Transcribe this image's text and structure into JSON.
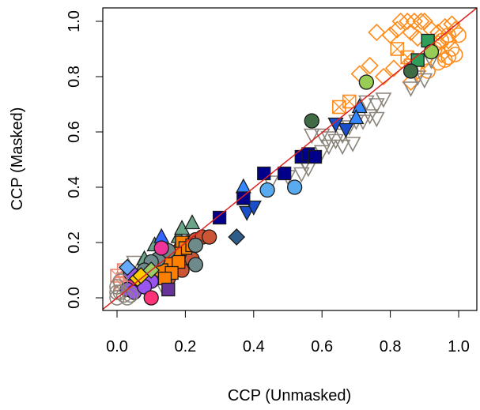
{
  "chart_data": {
    "type": "scatter",
    "title": "",
    "xlabel": "CCP (Unmasked)",
    "ylabel": "CCP (Masked)",
    "xlim": [
      0,
      1
    ],
    "ylim": [
      0,
      1
    ],
    "xticks": [
      "0.0",
      "0.2",
      "0.4",
      "0.6",
      "0.8",
      "1.0"
    ],
    "yticks": [
      "0.0",
      "0.2",
      "0.4",
      "0.6",
      "0.8",
      "1.0"
    ],
    "grid": false,
    "legend": "none",
    "reference_line": {
      "type": "identity",
      "color": "#dd2222"
    },
    "series": [
      {
        "shape": "diamond-open",
        "color": "#ff8c1a",
        "points": [
          [
            0.83,
            1.0
          ],
          [
            0.85,
            1.0
          ],
          [
            0.87,
            1.0
          ],
          [
            0.89,
            1.0
          ],
          [
            0.9,
            1.0
          ],
          [
            0.76,
            0.96
          ],
          [
            0.8,
            0.95
          ],
          [
            0.82,
            0.97
          ],
          [
            0.86,
            0.96
          ],
          [
            0.88,
            0.94
          ],
          [
            0.92,
            0.97
          ],
          [
            0.94,
            0.96
          ],
          [
            0.96,
            0.98
          ],
          [
            0.98,
            0.99
          ],
          [
            0.99,
            0.97
          ],
          [
            0.94,
            0.92
          ],
          [
            0.97,
            0.93
          ],
          [
            0.78,
            0.8
          ],
          [
            0.81,
            0.83
          ],
          [
            0.86,
            0.78
          ],
          [
            0.74,
            0.84
          ],
          [
            0.9,
            0.86
          ],
          [
            0.88,
            0.82
          ],
          [
            0.95,
            0.88
          ],
          [
            0.71,
            0.81
          ]
        ]
      },
      {
        "shape": "circle-open",
        "color": "#ff8c1a",
        "points": [
          [
            0.94,
            0.85
          ],
          [
            0.96,
            0.86
          ],
          [
            0.97,
            0.87
          ],
          [
            0.99,
            0.88
          ],
          [
            1.0,
            0.95
          ],
          [
            0.98,
            0.9
          ],
          [
            0.93,
            0.9
          ],
          [
            0.97,
            0.95
          ],
          [
            0.95,
            0.93
          ],
          [
            0.91,
            0.82
          ]
        ]
      },
      {
        "shape": "triangle-down-open",
        "color": "#8b847a",
        "points": [
          [
            0.57,
            0.59
          ],
          [
            0.6,
            0.59
          ],
          [
            0.62,
            0.58
          ],
          [
            0.64,
            0.57
          ],
          [
            0.66,
            0.59
          ],
          [
            0.68,
            0.62
          ],
          [
            0.7,
            0.64
          ],
          [
            0.72,
            0.64
          ],
          [
            0.74,
            0.66
          ],
          [
            0.76,
            0.65
          ],
          [
            0.73,
            0.71
          ],
          [
            0.76,
            0.7
          ],
          [
            0.78,
            0.72
          ],
          [
            0.62,
            0.55
          ],
          [
            0.66,
            0.55
          ],
          [
            0.69,
            0.56
          ],
          [
            0.55,
            0.49
          ],
          [
            0.56,
            0.47
          ],
          [
            0.6,
            0.53
          ],
          [
            0.5,
            0.44
          ],
          [
            0.54,
            0.45
          ],
          [
            0.45,
            0.42
          ],
          [
            0.88,
            0.8
          ],
          [
            0.9,
            0.79
          ],
          [
            0.92,
            0.86
          ],
          [
            0.86,
            0.76
          ],
          [
            0.04,
            0.06
          ],
          [
            0.06,
            0.03
          ],
          [
            0.08,
            0.04
          ],
          [
            0.02,
            0.07
          ],
          [
            0.05,
            0.13
          ],
          [
            0.09,
            0.1
          ],
          [
            0.11,
            0.07
          ],
          [
            0.13,
            0.05
          ]
        ]
      },
      {
        "shape": "square-x-open",
        "color": "#ff8c1a",
        "points": [
          [
            0.85,
            0.87
          ],
          [
            0.86,
            0.84
          ],
          [
            0.82,
            0.9
          ],
          [
            0.65,
            0.69
          ],
          [
            0.68,
            0.71
          ]
        ]
      },
      {
        "shape": "square-x-open",
        "color": "#ee8877",
        "points": [
          [
            0.0,
            0.08
          ],
          [
            0.01,
            0.05
          ],
          [
            0.02,
            0.1
          ],
          [
            0.04,
            0.08
          ],
          [
            0.06,
            0.05
          ]
        ]
      },
      {
        "shape": "square-filled",
        "color": "#2f9e5a",
        "points": [
          [
            0.91,
            0.93
          ],
          [
            0.88,
            0.86
          ]
        ]
      },
      {
        "shape": "circle-filled",
        "color": "#99cc55",
        "points": [
          [
            0.92,
            0.89
          ],
          [
            0.73,
            0.78
          ]
        ]
      },
      {
        "shape": "circle-filled",
        "color": "#3f6b45",
        "points": [
          [
            0.86,
            0.82
          ],
          [
            0.57,
            0.64
          ]
        ]
      },
      {
        "shape": "triangle-up-filled",
        "color": "#3388ff",
        "points": [
          [
            0.71,
            0.69
          ],
          [
            0.7,
            0.65
          ],
          [
            0.37,
            0.4
          ]
        ]
      },
      {
        "shape": "triangle-down-filled",
        "color": "#1a4fcc",
        "points": [
          [
            0.67,
            0.61
          ],
          [
            0.64,
            0.63
          ],
          [
            0.38,
            0.31
          ],
          [
            0.4,
            0.33
          ]
        ]
      },
      {
        "shape": "square-filled",
        "color": "#00008b",
        "points": [
          [
            0.54,
            0.51
          ],
          [
            0.56,
            0.52
          ],
          [
            0.58,
            0.51
          ],
          [
            0.49,
            0.45
          ],
          [
            0.43,
            0.45
          ],
          [
            0.37,
            0.36
          ],
          [
            0.3,
            0.29
          ]
        ]
      },
      {
        "shape": "circle-filled",
        "color": "#5aaaf0",
        "points": [
          [
            0.44,
            0.39
          ],
          [
            0.52,
            0.4
          ]
        ]
      },
      {
        "shape": "diamond-filled",
        "color": "#2f5d8a",
        "points": [
          [
            0.35,
            0.22
          ]
        ]
      },
      {
        "shape": "triangle-up-filled",
        "color": "#6aa58a",
        "points": [
          [
            0.11,
            0.19
          ],
          [
            0.14,
            0.16
          ],
          [
            0.18,
            0.22
          ],
          [
            0.19,
            0.25
          ],
          [
            0.22,
            0.27
          ],
          [
            0.16,
            0.13
          ],
          [
            0.2,
            0.18
          ],
          [
            0.08,
            0.14
          ],
          [
            0.1,
            0.1
          ],
          [
            0.14,
            0.09
          ]
        ]
      },
      {
        "shape": "triangle-up-filled",
        "color": "#3366ff",
        "points": [
          [
            0.13,
            0.22
          ]
        ]
      },
      {
        "shape": "circle-filled",
        "color": "#cc5533",
        "points": [
          [
            0.19,
            0.19
          ],
          [
            0.21,
            0.2
          ],
          [
            0.23,
            0.21
          ],
          [
            0.25,
            0.22
          ],
          [
            0.27,
            0.22
          ],
          [
            0.16,
            0.15
          ],
          [
            0.18,
            0.17
          ],
          [
            0.2,
            0.16
          ],
          [
            0.14,
            0.12
          ],
          [
            0.17,
            0.11
          ],
          [
            0.22,
            0.14
          ],
          [
            0.12,
            0.08
          ],
          [
            0.15,
            0.07
          ],
          [
            0.19,
            0.1
          ]
        ]
      },
      {
        "shape": "square-filled",
        "color": "#ff8000",
        "points": [
          [
            0.19,
            0.2
          ],
          [
            0.2,
            0.18
          ],
          [
            0.22,
            0.19
          ],
          [
            0.17,
            0.16
          ],
          [
            0.15,
            0.13
          ],
          [
            0.18,
            0.13
          ],
          [
            0.13,
            0.1
          ],
          [
            0.16,
            0.09
          ],
          [
            0.14,
            0.07
          ]
        ]
      },
      {
        "shape": "circle-filled",
        "color": "#6e8a8a",
        "points": [
          [
            0.23,
            0.19
          ],
          [
            0.12,
            0.14
          ],
          [
            0.1,
            0.13
          ],
          [
            0.23,
            0.12
          ],
          [
            0.15,
            0.17
          ],
          [
            0.08,
            0.1
          ]
        ]
      },
      {
        "shape": "circle-filled",
        "color": "#ee3399",
        "points": [
          [
            0.13,
            0.18
          ],
          [
            0.05,
            0.05
          ],
          [
            0.09,
            0.07
          ]
        ]
      },
      {
        "shape": "circle-filled",
        "color": "#9955ee",
        "points": [
          [
            0.03,
            0.03
          ],
          [
            0.05,
            0.02
          ],
          [
            0.07,
            0.06
          ],
          [
            0.1,
            0.06
          ],
          [
            0.08,
            0.04
          ],
          [
            0.04,
            0.09
          ]
        ]
      },
      {
        "shape": "square-filled",
        "color": "#663399",
        "points": [
          [
            0.15,
            0.03
          ]
        ]
      },
      {
        "shape": "circle-filled",
        "color": "#ff3377",
        "points": [
          [
            0.1,
            0.0
          ]
        ]
      },
      {
        "shape": "diamond-filled",
        "color": "#66aaff",
        "points": [
          [
            0.03,
            0.11
          ]
        ]
      },
      {
        "shape": "diamond-filled",
        "color": "#ffcc00",
        "points": [
          [
            0.06,
            0.07
          ],
          [
            0.07,
            0.08
          ]
        ]
      },
      {
        "shape": "diamond-filled",
        "color": "#99cc66",
        "points": [
          [
            0.1,
            0.1
          ]
        ]
      },
      {
        "shape": "circle-open",
        "color": "#8b847a",
        "points": [
          [
            0.0,
            0.0
          ],
          [
            0.01,
            0.02
          ],
          [
            0.0,
            0.04
          ],
          [
            0.02,
            0.01
          ],
          [
            0.03,
            0.0
          ],
          [
            0.01,
            0.06
          ],
          [
            0.0,
            0.02
          ],
          [
            0.04,
            0.01
          ]
        ]
      }
    ]
  }
}
